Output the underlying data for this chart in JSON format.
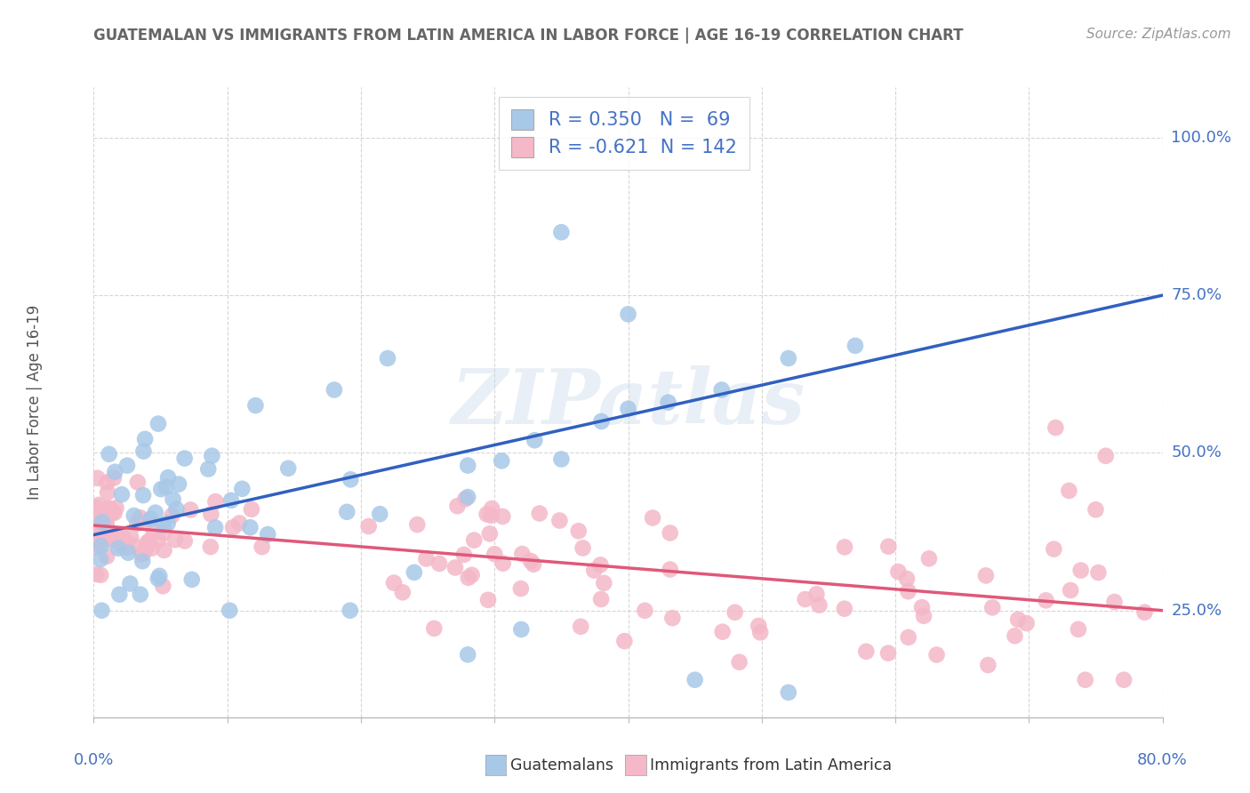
{
  "title": "GUATEMALAN VS IMMIGRANTS FROM LATIN AMERICA IN LABOR FORCE | AGE 16-19 CORRELATION CHART",
  "source": "Source: ZipAtlas.com",
  "ylabel": "In Labor Force | Age 16-19",
  "legend_labels": [
    "Guatemalans",
    "Immigrants from Latin America"
  ],
  "legend_r_blue": "R = 0.350",
  "legend_n_blue": "N =  69",
  "legend_r_pink": "R = -0.621",
  "legend_n_pink": "N = 142",
  "blue_color": "#a8c8e8",
  "pink_color": "#f4b8c8",
  "blue_line_color": "#3060c0",
  "pink_line_color": "#e05878",
  "xmin": 0.0,
  "xmax": 80.0,
  "ymin": 8.0,
  "ymax": 108.0,
  "blue_trendline": [
    0.0,
    37.0,
    80.0,
    75.0
  ],
  "pink_trendline": [
    0.0,
    38.5,
    80.0,
    25.0
  ],
  "watermark": "ZIPatlas",
  "background_color": "#ffffff",
  "grid_color": "#cccccc",
  "title_color": "#666666",
  "source_color": "#999999",
  "axis_label_color": "#4472c4",
  "text_color": "#333333",
  "ytick_vals": [
    25,
    50,
    75,
    100
  ],
  "ytick_labels": [
    "25.0%",
    "50.0%",
    "75.0%",
    "100.0%"
  ]
}
